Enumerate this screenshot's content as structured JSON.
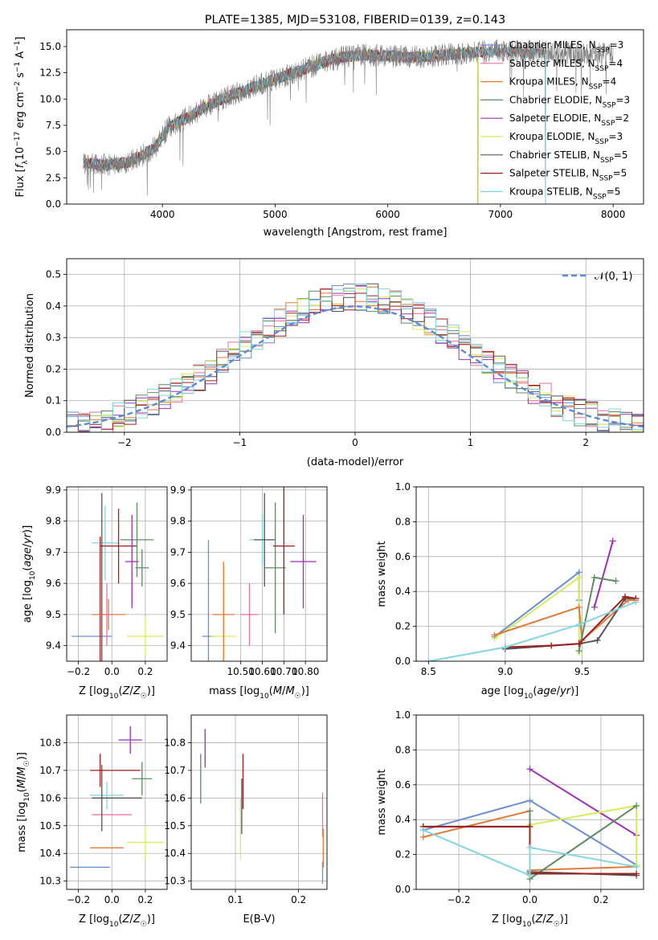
{
  "chart_data": [
    {
      "id": "spectrum",
      "type": "line",
      "title": "PLATE=1385, MJD=53108, FIBERID=0139, z=0.143",
      "xlabel": "wavelength [Angstrom, rest frame]",
      "ylabel": "Flux [f_λ 10^-17 erg cm^-2 s^-1 A^-1]",
      "xlim": [
        3150,
        8270
      ],
      "ylim": [
        0,
        16.6
      ],
      "xticks": [
        4000,
        5000,
        6000,
        7000,
        8000
      ],
      "yticks": [
        0.0,
        2.5,
        5.0,
        7.5,
        10.0,
        12.5,
        15.0
      ],
      "grid": false,
      "legend_position": "top-right",
      "observed_color": "#808080",
      "continuum_x": [
        3300,
        3500,
        3700,
        3850,
        3950,
        4050,
        4200,
        4400,
        4600,
        4800,
        5000,
        5200,
        5400,
        5600,
        5800,
        6000,
        6200,
        6400,
        6600,
        6800,
        7000,
        7200,
        7400,
        7600,
        7800,
        8000
      ],
      "continuum_y": [
        3.9,
        3.7,
        4.0,
        4.8,
        5.6,
        7.3,
        8.1,
        9.4,
        10.3,
        11.1,
        11.9,
        12.6,
        13.4,
        14.0,
        14.2,
        14.1,
        14.0,
        14.1,
        14.3,
        14.5,
        14.6,
        14.4,
        14.5,
        14.4,
        14.3,
        14.3
      ],
      "observed_range": [
        3300,
        8000
      ],
      "series": [
        {
          "name": "Chabrier MILES, N_SSP=3",
          "color": "#6b8fd4",
          "end": 6800
        },
        {
          "name": "Salpeter MILES, N_SSP=4",
          "color": "#e8729f",
          "end": 6800
        },
        {
          "name": "Kroupa MILES, N_SSP=4",
          "color": "#e07b39",
          "end": 6800
        },
        {
          "name": "Chabrier ELODIE, N_SSP=3",
          "color": "#5e8c64",
          "end": 6800
        },
        {
          "name": "Salpeter ELODIE, N_SSP=2",
          "color": "#9b30b4",
          "end": 6800
        },
        {
          "name": "Kroupa ELODIE, N_SSP=3",
          "color": "#d4ed5a",
          "end": 6800
        },
        {
          "name": "Chabrier STELIB, N_SSP=5",
          "color": "#555555",
          "end": 7400
        },
        {
          "name": "Salpeter STELIB, N_SSP=5",
          "color": "#a11f1f",
          "end": 7400
        },
        {
          "name": "Kroupa STELIB, N_SSP=5",
          "color": "#83d6e0",
          "end": 7400
        }
      ]
    },
    {
      "id": "residuals",
      "type": "histogram",
      "xlabel": "(data-model)/error",
      "ylabel": "Normed distribution",
      "xlim": [
        -2.5,
        2.5
      ],
      "ylim": [
        0,
        0.55
      ],
      "xticks": [
        -2,
        -1,
        0,
        1,
        2
      ],
      "yticks": [
        0.0,
        0.1,
        0.2,
        0.3,
        0.4,
        0.5
      ],
      "grid": true,
      "legend_position": "top-right",
      "reference_curve": {
        "name": "𝒩(0, 1)",
        "color": "#5b8bd6",
        "style": "dashed"
      },
      "bin_width": 0.1,
      "bin_start": -2.5
    },
    {
      "id": "age-vs-z",
      "type": "scatter",
      "xlabel": "Z [log10(Z/Z☉)]",
      "ylabel": "age [log10(age/yr)]",
      "xlim": [
        -0.27,
        0.33
      ],
      "ylim": [
        9.35,
        9.91
      ],
      "xticks": [
        -0.2,
        0.0,
        0.2
      ],
      "yticks": [
        9.4,
        9.5,
        9.6,
        9.7,
        9.8,
        9.9
      ],
      "grid": true,
      "points": [
        {
          "color": "#6b8fd4",
          "x": -0.12,
          "y": 9.43,
          "xerr": 0.12,
          "yerr": 0.0
        },
        {
          "color": "#83d6e0",
          "x": -0.04,
          "y": 9.73,
          "xerr": 0.08,
          "yerr": 0.12
        },
        {
          "color": "#555555",
          "x": -0.06,
          "y": 9.5,
          "xerr": 0.01,
          "yerr": 0.39
        },
        {
          "color": "#a11f1f",
          "x": -0.07,
          "y": 9.5,
          "xerr": 0.01,
          "yerr": 0.25
        },
        {
          "color": "#e07b39",
          "x": -0.02,
          "y": 9.5,
          "xerr": 0.1,
          "yerr": 0.05
        },
        {
          "color": "#e8729f",
          "x": -0.03,
          "y": 9.5,
          "xerr": 0.02,
          "yerr": 0.1
        },
        {
          "color": "#a11f1f",
          "x": 0.04,
          "y": 9.72,
          "xerr": 0.11,
          "yerr": 0.12
        },
        {
          "color": "#5e8c64",
          "x": 0.15,
          "y": 9.74,
          "xerr": 0.1,
          "yerr": 0.12
        },
        {
          "color": "#5e8c64",
          "x": 0.18,
          "y": 9.65,
          "xerr": 0.04,
          "yerr": 0.06
        },
        {
          "color": "#9b30b4",
          "x": 0.12,
          "y": 9.67,
          "xerr": 0.04,
          "yerr": 0.15
        },
        {
          "color": "#d4ed5a",
          "x": 0.2,
          "y": 9.43,
          "xerr": 0.11,
          "yerr": 0.06
        }
      ]
    },
    {
      "id": "age-vs-mass",
      "type": "scatter",
      "xlabel": "mass [log10(M/M☉)]",
      "ylabel": "",
      "xlim": [
        10.27,
        10.9
      ],
      "ylim": [
        9.35,
        9.91
      ],
      "xticks": [
        10.5,
        10.6,
        10.7,
        10.8
      ],
      "xticklabels": [
        "10.50",
        "10.60",
        "10.70",
        "10.80"
      ],
      "yticks": [
        9.4,
        9.5,
        9.6,
        9.7,
        9.8,
        9.9
      ],
      "grid": true,
      "points": [
        {
          "color": "#6b8fd4",
          "x": 10.35,
          "y": 9.43,
          "xerr": 0.03,
          "yerr": 0.31
        },
        {
          "color": "#d4ed5a",
          "x": 10.42,
          "y": 9.43,
          "xerr": 0.06,
          "yerr": 0.24
        },
        {
          "color": "#e07b39",
          "x": 10.42,
          "y": 9.5,
          "xerr": 0.05,
          "yerr": 0.17
        },
        {
          "color": "#e8729f",
          "x": 10.54,
          "y": 9.5,
          "xerr": 0.04,
          "yerr": 0.1
        },
        {
          "color": "#83d6e0",
          "x": 10.6,
          "y": 9.74,
          "xerr": 0.06,
          "yerr": 0.08
        },
        {
          "color": "#555555",
          "x": 10.61,
          "y": 9.74,
          "xerr": 0.05,
          "yerr": 0.15
        },
        {
          "color": "#5e8c64",
          "x": 10.66,
          "y": 9.65,
          "xerr": 0.05,
          "yerr": 0.21
        },
        {
          "color": "#a11f1f",
          "x": 10.7,
          "y": 9.72,
          "xerr": 0.05,
          "yerr": 0.22
        },
        {
          "color": "#9b30b4",
          "x": 10.79,
          "y": 9.67,
          "xerr": 0.06,
          "yerr": 0.15
        }
      ]
    },
    {
      "id": "weight-vs-age",
      "type": "line",
      "xlabel": "age [log10(age/yr)]",
      "ylabel": "mass weight",
      "xlim": [
        8.42,
        9.9
      ],
      "ylim": [
        0,
        1.0
      ],
      "xticks": [
        8.5,
        9.0,
        9.5
      ],
      "yticks": [
        0.0,
        0.2,
        0.4,
        0.6,
        0.8,
        1.0
      ],
      "grid": true,
      "series": [
        {
          "color": "#6b8fd4",
          "x": [
            8.93,
            9.48,
            9.48
          ],
          "y": [
            0.14,
            0.51,
            0.35
          ]
        },
        {
          "color": "#d4ed5a",
          "x": [
            8.93,
            9.48,
            9.48
          ],
          "y": [
            0.13,
            0.48,
            0.05
          ]
        },
        {
          "color": "#e07b39",
          "x": [
            8.93,
            9.48,
            9.5,
            9.8,
            9.85
          ],
          "y": [
            0.15,
            0.31,
            0.12,
            0.35,
            0.35
          ]
        },
        {
          "color": "#9b30b4",
          "x": [
            9.58,
            9.7
          ],
          "y": [
            0.31,
            0.69
          ]
        },
        {
          "color": "#5e8c64",
          "x": [
            9.48,
            9.58,
            9.72
          ],
          "y": [
            0.06,
            0.48,
            0.46
          ]
        },
        {
          "color": "#555555",
          "x": [
            9.0,
            9.48,
            9.6,
            9.78,
            9.85
          ],
          "y": [
            0.07,
            0.1,
            0.12,
            0.36,
            0.36
          ]
        },
        {
          "color": "#a11f1f",
          "x": [
            9.0,
            9.3,
            9.48,
            9.78,
            9.85
          ],
          "y": [
            0.08,
            0.09,
            0.1,
            0.37,
            0.36
          ]
        },
        {
          "color": "#83d6e0",
          "x": [
            8.5,
            9.0,
            9.48,
            9.85
          ],
          "y": [
            0.0,
            0.08,
            0.21,
            0.34
          ]
        }
      ]
    },
    {
      "id": "mass-vs-z",
      "type": "scatter",
      "xlabel": "Z [log10(Z/Z☉)]",
      "ylabel": "mass [log10(M/M☉)]",
      "xlim": [
        -0.27,
        0.33
      ],
      "ylim": [
        10.27,
        10.9
      ],
      "xticks": [
        -0.2,
        0.0,
        0.2
      ],
      "yticks": [
        10.3,
        10.4,
        10.5,
        10.6,
        10.7,
        10.8
      ],
      "grid": true,
      "points": [
        {
          "color": "#6b8fd4",
          "x": -0.13,
          "y": 10.35,
          "xerr": 0.12,
          "yerr": 0.0
        },
        {
          "color": "#e07b39",
          "x": -0.03,
          "y": 10.42,
          "xerr": 0.1,
          "yerr": 0.0
        },
        {
          "color": "#e8729f",
          "x": 0.0,
          "y": 10.54,
          "xerr": 0.12,
          "yerr": 0.0
        },
        {
          "color": "#83d6e0",
          "x": -0.03,
          "y": 10.61,
          "xerr": 0.1,
          "yerr": 0.05
        },
        {
          "color": "#555555",
          "x": -0.06,
          "y": 10.6,
          "xerr": 0.01,
          "yerr": 0.12
        },
        {
          "color": "#555555",
          "x": 0.03,
          "y": 10.6,
          "xerr": 0.15,
          "yerr": 0.0
        },
        {
          "color": "#a11f1f",
          "x": -0.07,
          "y": 10.7,
          "xerr": 0.01,
          "yerr": 0.06
        },
        {
          "color": "#a11f1f",
          "x": 0.02,
          "y": 10.7,
          "xerr": 0.15,
          "yerr": 0.0
        },
        {
          "color": "#5e8c64",
          "x": 0.18,
          "y": 10.67,
          "xerr": 0.06,
          "yerr": 0.06
        },
        {
          "color": "#9b30b4",
          "x": 0.11,
          "y": 10.81,
          "xerr": 0.07,
          "yerr": 0.05
        },
        {
          "color": "#d4ed5a",
          "x": 0.2,
          "y": 10.44,
          "xerr": 0.11,
          "yerr": 0.06
        }
      ]
    },
    {
      "id": "mass-vs-ebv",
      "type": "scatter",
      "xlabel": "E(B-V)",
      "ylabel": "",
      "xlim": [
        0.03,
        0.245
      ],
      "ylim": [
        10.27,
        10.9
      ],
      "xticks": [
        0.1,
        0.2
      ],
      "yticks": [
        10.3,
        10.4,
        10.5,
        10.6,
        10.7,
        10.8
      ],
      "grid": true,
      "points": [
        {
          "color": "#9b30b4",
          "x": 0.052,
          "y": 10.78,
          "xerr": 0,
          "yerr": 0.07
        },
        {
          "color": "#5e8c64",
          "x": 0.045,
          "y": 10.67,
          "xerr": 0,
          "yerr": 0.09
        },
        {
          "color": "#d4ed5a",
          "x": 0.108,
          "y": 10.49,
          "xerr": 0,
          "yerr": 0.11
        },
        {
          "color": "#555555",
          "x": 0.11,
          "y": 10.57,
          "xerr": 0,
          "yerr": 0.1
        },
        {
          "color": "#a11f1f",
          "x": 0.112,
          "y": 10.66,
          "xerr": 0,
          "yerr": 0.1
        },
        {
          "color": "#e8729f",
          "x": 0.238,
          "y": 10.54,
          "xerr": 0,
          "yerr": 0.08
        },
        {
          "color": "#e07b39",
          "x": 0.239,
          "y": 10.42,
          "xerr": 0,
          "yerr": 0.07
        },
        {
          "color": "#6b8fd4",
          "x": 0.238,
          "y": 10.33,
          "xerr": 0,
          "yerr": 0.04
        }
      ]
    },
    {
      "id": "weight-vs-z",
      "type": "line",
      "xlabel": "Z [log10(Z/Z☉)]",
      "ylabel": "mass weight",
      "xlim": [
        -0.32,
        0.32
      ],
      "ylim": [
        0,
        1.0
      ],
      "xticks": [
        -0.2,
        0.0,
        0.2
      ],
      "yticks": [
        0.0,
        0.2,
        0.4,
        0.6,
        0.8,
        1.0
      ],
      "grid": true,
      "series": [
        {
          "color": "#6b8fd4",
          "x": [
            -0.3,
            0.0,
            0.3
          ],
          "y": [
            0.34,
            0.51,
            0.14
          ]
        },
        {
          "color": "#e07b39",
          "x": [
            -0.3,
            0.0,
            0.0,
            0.3
          ],
          "y": [
            0.3,
            0.45,
            0.11,
            0.13
          ]
        },
        {
          "color": "#9b30b4",
          "x": [
            0.0,
            0.3
          ],
          "y": [
            0.69,
            0.31
          ]
        },
        {
          "color": "#d4ed5a",
          "x": [
            0.0,
            0.3,
            0.3
          ],
          "y": [
            0.37,
            0.48,
            0.14
          ]
        },
        {
          "color": "#5e8c64",
          "x": [
            0.0,
            0.0,
            0.3
          ],
          "y": [
            0.45,
            0.06,
            0.48
          ]
        },
        {
          "color": "#555555",
          "x": [
            -0.3,
            0.0,
            0.0,
            0.3
          ],
          "y": [
            0.36,
            0.36,
            0.1,
            0.08
          ]
        },
        {
          "color": "#a11f1f",
          "x": [
            -0.3,
            0.0,
            0.0,
            0.3
          ],
          "y": [
            0.36,
            0.36,
            0.09,
            0.09
          ]
        },
        {
          "color": "#83d6e0",
          "x": [
            -0.3,
            0.0,
            0.0,
            0.3
          ],
          "y": [
            0.34,
            0.08,
            0.24,
            0.13
          ]
        }
      ]
    }
  ]
}
